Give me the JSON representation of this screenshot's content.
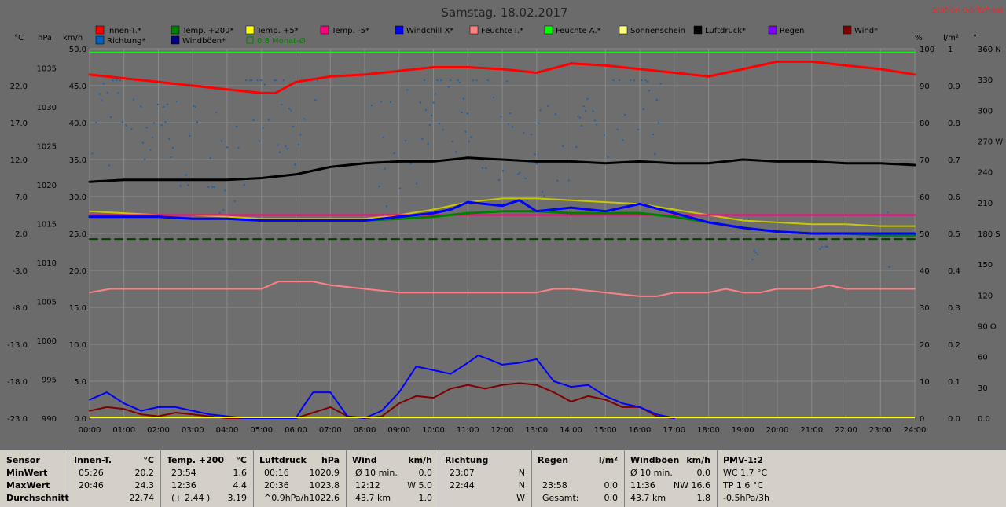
{
  "title": "Samstag. 18.02.2017",
  "station": "Station Göritzhain",
  "legend": [
    {
      "label": "Innen-T.*",
      "color": "#ff0000"
    },
    {
      "label": "Temp. +200*",
      "color": "#008000"
    },
    {
      "label": "Temp. +5*",
      "color": "#ffff00"
    },
    {
      "label": "Temp. -5*",
      "color": "#ff0080"
    },
    {
      "label": "Windchill X*",
      "color": "#0000ff"
    },
    {
      "label": "Feuchte I.*",
      "color": "#ff8080"
    },
    {
      "label": "Feuchte A.*",
      "color": "#00ff00"
    },
    {
      "label": "Sonnenschein",
      "color": "#ffff80"
    },
    {
      "label": "Luftdruck*",
      "color": "#000000"
    },
    {
      "label": "Regen",
      "color": "#8000ff"
    },
    {
      "label": "Wind*",
      "color": "#800000"
    },
    {
      "label": "Richtung*",
      "color": "#0060c0"
    },
    {
      "label": "Windböen*",
      "color": "#000080"
    },
    {
      "label": "0.8 Monat-Ø",
      "color": "#008000",
      "outline": true
    }
  ],
  "axis_units": {
    "temp": "°C",
    "pressure": "hPa",
    "wind": "km/h",
    "humidity": "%",
    "rain": "l/m²",
    "direction": "°"
  },
  "footer": {
    "sensor": {
      "header": "Sensor",
      "rows": [
        "MinWert",
        "MaxWert",
        "Durchschnitt"
      ]
    },
    "innen": {
      "header": "Innen-T.",
      "unit": "°C",
      "rows": [
        [
          "05:26",
          "20.2"
        ],
        [
          "20:46",
          "24.3"
        ],
        [
          "",
          "22.74"
        ]
      ]
    },
    "temp": {
      "header": "Temp. +200",
      "unit": "°C",
      "rows": [
        [
          "23:54",
          "1.6"
        ],
        [
          "12:36",
          "4.4"
        ],
        [
          "(+ 2.44 )",
          "3.19"
        ]
      ]
    },
    "druck": {
      "header": "Luftdruck",
      "unit": "hPa",
      "rows": [
        [
          "00:16",
          "1020.9"
        ],
        [
          "20:36",
          "1023.8"
        ],
        [
          "^0.9hPa/h",
          "1022.6"
        ]
      ]
    },
    "wind": {
      "header": "Wind",
      "unit": "km/h",
      "rows": [
        [
          "Ø 10 min.",
          "0.0"
        ],
        [
          "12:12",
          "W 5.0"
        ],
        [
          "43.7 km",
          "1.0"
        ]
      ]
    },
    "richtung": {
      "header": "Richtung",
      "unit": "",
      "rows": [
        [
          "23:07",
          "N"
        ],
        [
          "22:44",
          "N"
        ],
        [
          "",
          "W"
        ]
      ]
    },
    "regen": {
      "header": "Regen",
      "unit": "l/m²",
      "rows": [
        [
          "",
          ""
        ],
        [
          "23:58",
          "0.0"
        ],
        [
          "Gesamt:",
          "0.0"
        ]
      ]
    },
    "boeen": {
      "header": "Windböen",
      "unit": "km/h",
      "rows": [
        [
          "Ø 10 min.",
          "0.0"
        ],
        [
          "11:36",
          "NW 16.6"
        ],
        [
          "43.7 km",
          "1.8"
        ]
      ]
    },
    "pmv": {
      "header": "PMV-1:2",
      "unit": "",
      "rows": [
        [
          "WC 1.7 °C",
          ""
        ],
        [
          "TP 1.6 °C",
          ""
        ],
        [
          "-0.5hPa/3h",
          ""
        ]
      ]
    }
  },
  "chart_data": {
    "type": "line",
    "title": "Samstag. 18.02.2017",
    "x_ticks": [
      "00:00",
      "01:00",
      "02:00",
      "03:00",
      "04:00",
      "05:00",
      "06:00",
      "07:00",
      "08:00",
      "09:00",
      "10:00",
      "11:00",
      "12:00",
      "13:00",
      "14:00",
      "15:00",
      "16:00",
      "17:00",
      "18:00",
      "19:00",
      "20:00",
      "21:00",
      "22:00",
      "23:00",
      "24:00"
    ],
    "axes": {
      "temp_c": {
        "ticks": [
          "22.0",
          "17.0",
          "12.0",
          "7.0",
          "2.0",
          "-3.0",
          "-8.0",
          "-13.0",
          "-18.0",
          "-23.0"
        ],
        "ylim": [
          -23,
          27
        ]
      },
      "pressure_hpa": {
        "ticks": [
          "1035",
          "1030",
          "1025",
          "1020",
          "1015",
          "1010",
          "1005",
          "1000",
          "995",
          "990"
        ],
        "ylim": [
          990,
          1037.5
        ]
      },
      "wind_kmh": {
        "ticks": [
          "50.0",
          "45.0",
          "40.0",
          "35.0",
          "30.0",
          "25.0",
          "20.0",
          "15.0",
          "10.0",
          "5.0",
          "0.0"
        ],
        "ylim": [
          0,
          50
        ]
      },
      "humidity_pct": {
        "ticks": [
          "100",
          "90",
          "80",
          "70",
          "60",
          "50",
          "40",
          "30",
          "20",
          "10",
          "0"
        ],
        "ylim": [
          0,
          100
        ]
      },
      "rain_lm2": {
        "ticks": [
          "1",
          "0.9",
          "0.8",
          "0.7",
          "0.6",
          "0.5",
          "0.4",
          "0.3",
          "0.2",
          "0.1",
          "0.0"
        ],
        "ylim": [
          0,
          1
        ]
      },
      "direction_deg": {
        "ticks": [
          "360 N",
          "330",
          "300",
          "270 W",
          "240",
          "210",
          "180 S",
          "150",
          "120",
          "90 O",
          "60",
          "30",
          "0.0"
        ],
        "ylim": [
          0,
          360
        ]
      }
    },
    "series": [
      {
        "name": "Innen-T.*",
        "color": "#ff0000",
        "width": 3,
        "axis": "humidity_pct",
        "x": [
          0,
          1,
          2,
          3,
          4,
          5,
          5.4,
          6,
          7,
          8,
          9,
          10,
          11,
          12,
          13,
          14,
          15,
          16,
          17,
          18,
          19,
          20,
          21,
          22,
          23,
          24
        ],
        "y": [
          93,
          92,
          91,
          90,
          89,
          88,
          88,
          91,
          92.5,
          93,
          94,
          95,
          95,
          94.5,
          93.5,
          96,
          95.5,
          94.5,
          93.5,
          92.5,
          94.5,
          96.5,
          96.5,
          95.5,
          94.5,
          93
        ]
      },
      {
        "name": "Luftdruck*",
        "color": "#000000",
        "width": 3,
        "axis": "humidity_pct",
        "x": [
          0,
          1,
          2,
          3,
          4,
          5,
          6,
          7,
          8,
          9,
          10,
          11,
          12,
          13,
          14,
          15,
          16,
          17,
          18,
          19,
          20,
          21,
          22,
          23,
          24
        ],
        "y": [
          64,
          64.5,
          64.5,
          64.5,
          64.5,
          65,
          66,
          68,
          69,
          69.5,
          69.5,
          70.5,
          70,
          69.5,
          69.5,
          69,
          69.5,
          69,
          69,
          70,
          69.5,
          69.5,
          69,
          69,
          68.5
        ]
      },
      {
        "name": "Temp. +5*",
        "color": "#c8c800",
        "width": 2,
        "axis": "humidity_pct",
        "x": [
          0,
          1,
          2,
          3,
          4,
          5,
          6,
          7,
          8,
          9,
          10,
          11,
          12,
          13,
          14,
          15,
          16,
          17,
          18,
          19,
          20,
          21,
          22,
          23,
          24
        ],
        "y": [
          56,
          55.5,
          55,
          55,
          54.5,
          54,
          54,
          54,
          54,
          55,
          56.5,
          58.5,
          59.5,
          59.5,
          59,
          58.5,
          58,
          56.5,
          55,
          53.5,
          53,
          52.5,
          52.5,
          52,
          52
        ]
      },
      {
        "name": "Temp. -5*",
        "color": "#ff0080",
        "width": 2,
        "axis": "humidity_pct",
        "x": [
          0,
          24
        ],
        "y": [
          55,
          55
        ]
      },
      {
        "name": "Temp. +200*",
        "color": "#008000",
        "width": 3,
        "axis": "humidity_pct",
        "x": [
          0,
          1,
          2,
          3,
          4,
          5,
          6,
          7,
          8,
          9,
          10,
          11,
          12,
          13,
          14,
          15,
          16,
          17,
          18,
          19,
          20,
          21,
          22,
          23,
          24
        ],
        "y": [
          54.5,
          54.5,
          54.5,
          54,
          54,
          53.5,
          53.5,
          53.5,
          53.5,
          54,
          54.5,
          55.5,
          56,
          56,
          55.5,
          55.5,
          55.5,
          54.5,
          53,
          51.5,
          50.5,
          50,
          50,
          49.5,
          49.5
        ]
      },
      {
        "name": "Windchill X*",
        "color": "#0000ff",
        "width": 3,
        "axis": "humidity_pct",
        "x": [
          0,
          1,
          2,
          3,
          4,
          5,
          6,
          7,
          8,
          9,
          10,
          10.5,
          11,
          12,
          12.5,
          13,
          14,
          15,
          16,
          17,
          18,
          19,
          20,
          21,
          22,
          23,
          24
        ],
        "y": [
          54.5,
          54.5,
          54.5,
          54,
          54,
          53.5,
          53.5,
          53.5,
          53.5,
          54.5,
          55.5,
          56.5,
          58.5,
          57.5,
          59,
          56,
          57,
          56,
          58,
          55.5,
          53,
          51.5,
          50.5,
          50,
          50,
          50,
          50
        ]
      },
      {
        "name": "Feuchte I.*",
        "color": "#ff8080",
        "width": 2,
        "axis": "humidity_pct",
        "x": [
          0,
          0.6,
          1,
          5,
          5.5,
          6.5,
          7,
          8,
          9,
          10,
          11,
          12,
          13,
          13.5,
          14,
          15,
          16,
          16.5,
          17,
          18,
          18.5,
          19,
          19.5,
          20,
          21,
          21.5,
          22,
          23,
          24
        ],
        "y": [
          34,
          35,
          35,
          35,
          37,
          37,
          36,
          35,
          34,
          34,
          34,
          34,
          34,
          35,
          35,
          34,
          33,
          33,
          34,
          34,
          35,
          34,
          34,
          35,
          35,
          36,
          35,
          35,
          35
        ]
      },
      {
        "name": "Feuchte A.*",
        "color": "#00ff00",
        "width": 2,
        "axis": "humidity_pct",
        "x": [
          0,
          24
        ],
        "y": [
          99,
          99
        ]
      },
      {
        "name": "0.8 Monat-Ø",
        "color": "#004000",
        "width": 2,
        "dash": true,
        "axis": "humidity_pct",
        "x": [
          0,
          24
        ],
        "y": [
          48.5,
          48.5
        ]
      },
      {
        "name": "Wind*",
        "color": "#800000",
        "width": 2,
        "axis": "humidity_pct",
        "x": [
          0,
          0.5,
          1,
          1.5,
          2,
          2.5,
          3,
          3.5,
          4,
          4.5,
          5,
          5.5,
          6,
          6.5,
          7,
          7.5,
          8,
          8.5,
          9,
          9.5,
          10,
          10.5,
          11,
          11.5,
          12,
          12.5,
          13,
          13.5,
          14,
          14.5,
          15,
          15.5,
          16,
          16.5,
          17
        ],
        "y": [
          2,
          3,
          2.5,
          1,
          0.5,
          1.5,
          1,
          0.5,
          0,
          0,
          0,
          0,
          0,
          1.5,
          3,
          0.5,
          0,
          0.5,
          4,
          6,
          5.5,
          8,
          9,
          8,
          9,
          9.5,
          9,
          7,
          4.5,
          6,
          5,
          3,
          3,
          0.5,
          0
        ]
      },
      {
        "name": "Windböen*",
        "color": "#0000ff",
        "width": 2,
        "axis": "humidity_pct",
        "x": [
          0,
          0.5,
          1,
          1.5,
          2,
          2.5,
          3,
          3.5,
          4,
          4.5,
          5,
          5.5,
          6,
          6.2,
          6.5,
          7,
          7.5,
          8,
          8.5,
          9,
          9.5,
          10,
          10.5,
          11,
          11.3,
          11.6,
          12,
          12.5,
          13,
          13.5,
          14,
          14.5,
          15,
          15.5,
          16,
          16.5,
          17
        ],
        "y": [
          5,
          7,
          4,
          2,
          3,
          3,
          2,
          1,
          0.5,
          0,
          0,
          0,
          0,
          3,
          7,
          7,
          0.5,
          0,
          2,
          7,
          14,
          13,
          12,
          15,
          17,
          16,
          14.5,
          15,
          16,
          10,
          8.5,
          9,
          6,
          4,
          3,
          1,
          0
        ]
      }
    ],
    "direction_points_count": 440,
    "grid": true,
    "legend_position": "top"
  }
}
